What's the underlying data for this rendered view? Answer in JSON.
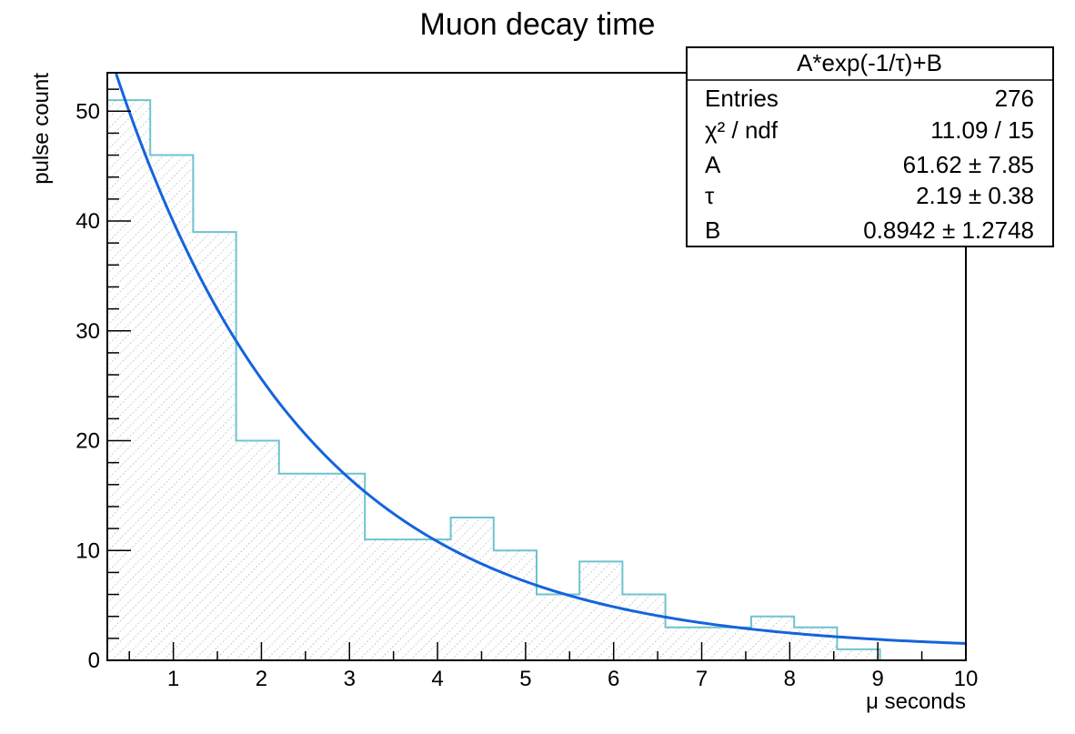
{
  "chart_data": {
    "type": "bar",
    "title": "Muon decay time",
    "xlabel": "μ seconds",
    "ylabel": "pulse count",
    "xlim": [
      0.25,
      10
    ],
    "ylim": [
      0,
      53.5
    ],
    "x_ticks": [
      1,
      2,
      3,
      4,
      5,
      6,
      7,
      8,
      9,
      10
    ],
    "y_ticks": [
      0,
      10,
      20,
      30,
      40,
      50
    ],
    "bin_width": 0.4875,
    "bins": [
      {
        "x_low": 0.25,
        "x_high": 0.7375,
        "count": 51
      },
      {
        "x_low": 0.7375,
        "x_high": 1.225,
        "count": 46
      },
      {
        "x_low": 1.225,
        "x_high": 1.7125,
        "count": 39
      },
      {
        "x_low": 1.7125,
        "x_high": 2.2,
        "count": 20
      },
      {
        "x_low": 2.2,
        "x_high": 2.6875,
        "count": 17
      },
      {
        "x_low": 2.6875,
        "x_high": 3.175,
        "count": 17
      },
      {
        "x_low": 3.175,
        "x_high": 3.6625,
        "count": 11
      },
      {
        "x_low": 3.6625,
        "x_high": 4.15,
        "count": 11
      },
      {
        "x_low": 4.15,
        "x_high": 4.6375,
        "count": 13
      },
      {
        "x_low": 4.6375,
        "x_high": 5.125,
        "count": 10
      },
      {
        "x_low": 5.125,
        "x_high": 5.6125,
        "count": 6
      },
      {
        "x_low": 5.6125,
        "x_high": 6.1,
        "count": 9
      },
      {
        "x_low": 6.1,
        "x_high": 6.5875,
        "count": 6
      },
      {
        "x_low": 6.5875,
        "x_high": 7.075,
        "count": 3
      },
      {
        "x_low": 7.075,
        "x_high": 7.5625,
        "count": 3
      },
      {
        "x_low": 7.5625,
        "x_high": 8.05,
        "count": 4
      },
      {
        "x_low": 8.05,
        "x_high": 8.5375,
        "count": 3
      },
      {
        "x_low": 8.5375,
        "x_high": 9.025,
        "count": 1
      }
    ],
    "fit": {
      "A": 61.62,
      "tau": 2.19,
      "B": 0.8942,
      "x_start": 0.35,
      "x_end": 10
    },
    "colors": {
      "histogram_line": "#6fc3cf",
      "hatch": "#9aa0aa",
      "fit_curve": "#1464dc",
      "axis": "#000000"
    },
    "grid": false,
    "legend_placement": "top-right"
  },
  "stats_box": {
    "title": "A*exp(-1/τ)+B",
    "rows": [
      {
        "label": "Entries",
        "value": "276"
      },
      {
        "label": "χ² / ndf",
        "value": "11.09 / 15"
      },
      {
        "label": "A",
        "value": "61.62 ± 7.85"
      },
      {
        "label": "τ",
        "value": "2.19 ± 0.38"
      },
      {
        "label": "B",
        "value": "0.8942 ± 1.2748"
      }
    ]
  }
}
